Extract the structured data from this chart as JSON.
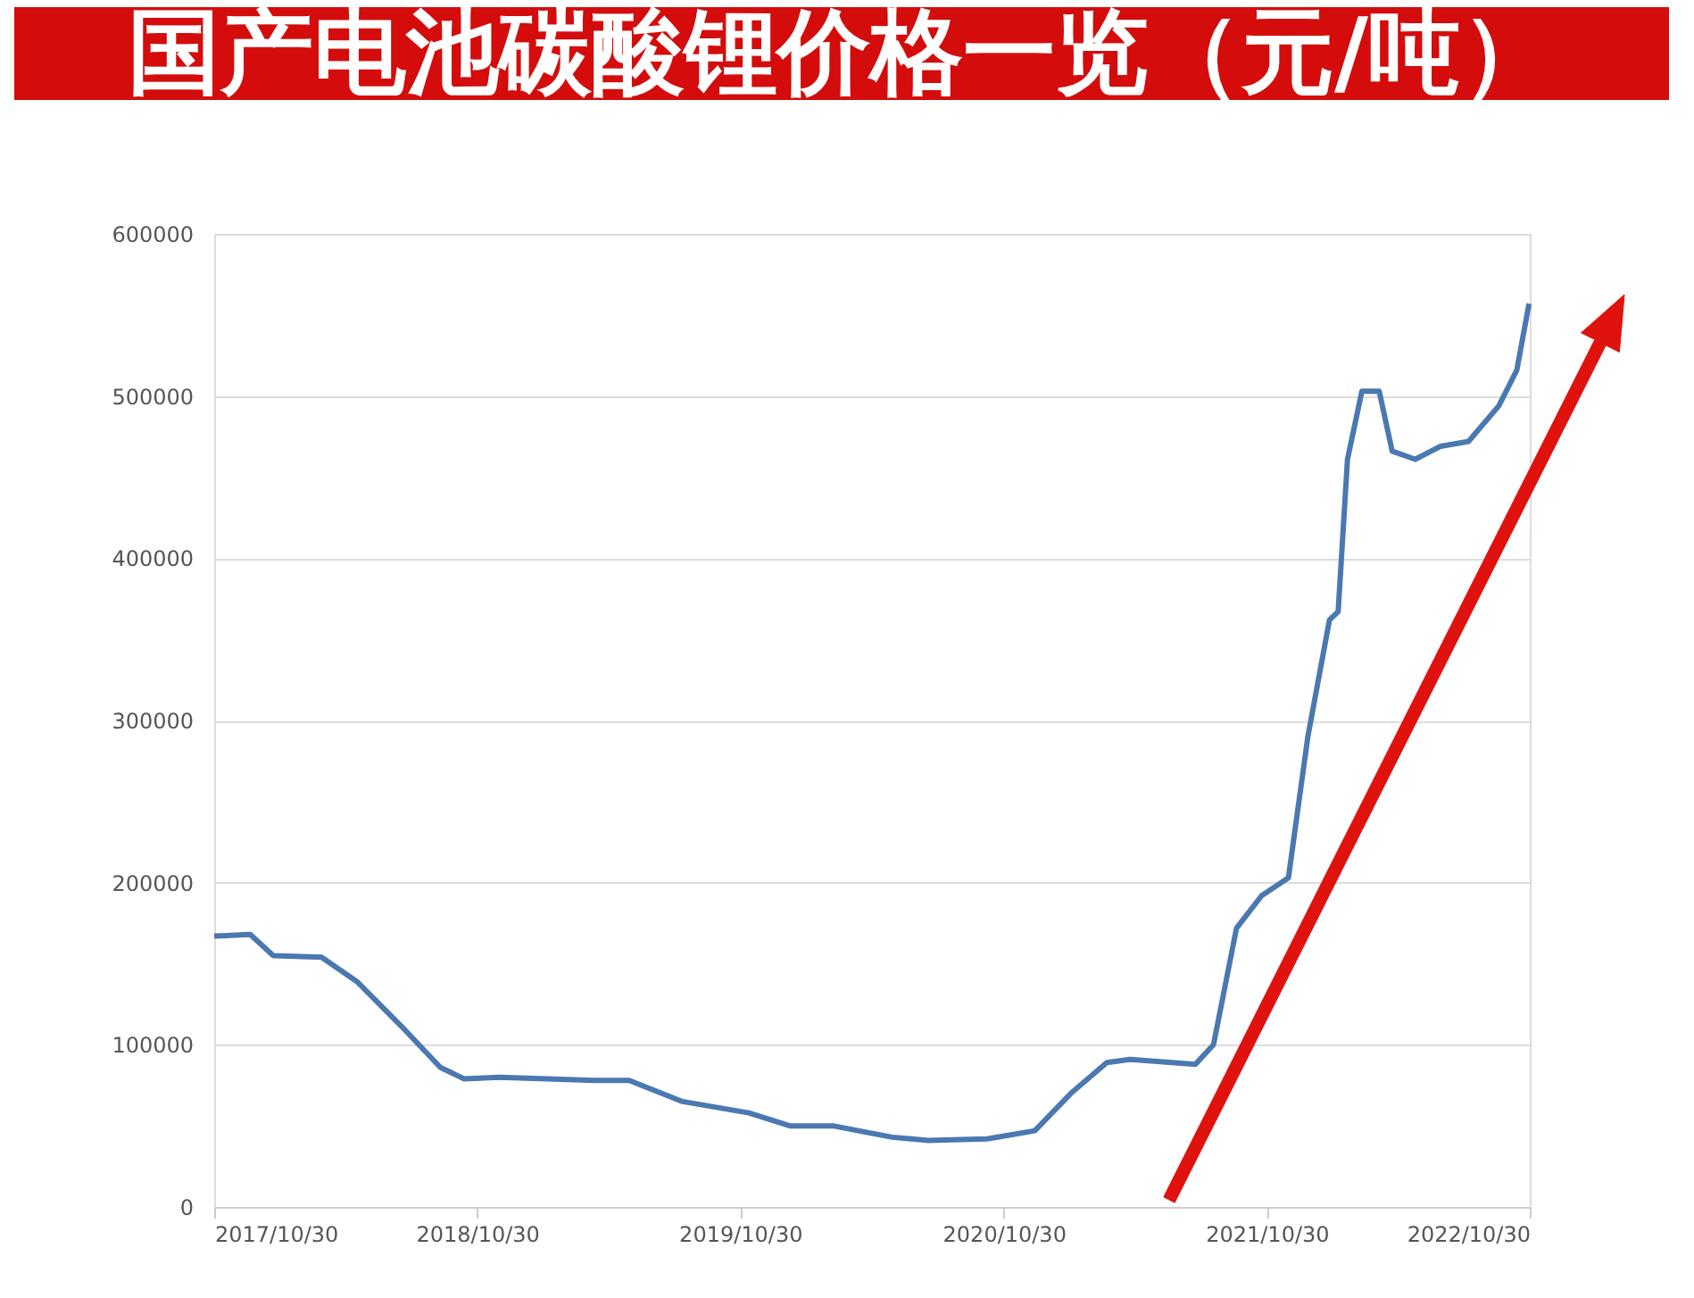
{
  "chart_data": {
    "type": "line",
    "title": "国产电池碳酸锂价格一览（元/吨）",
    "x": [
      "2017-10-30",
      "2017-12-19",
      "2018-01-20",
      "2018-03-28",
      "2018-05-16",
      "2018-07-22",
      "2018-09-09",
      "2018-10-12",
      "2018-11-30",
      "2019-04-10",
      "2019-05-29",
      "2019-08-11",
      "2019-11-11",
      "2020-01-07",
      "2020-03-07",
      "2020-05-28",
      "2020-07-17",
      "2020-10-07",
      "2020-12-12",
      "2021-01-31",
      "2021-03-22",
      "2021-04-23",
      "2021-07-23",
      "2021-08-17",
      "2021-09-18",
      "2021-10-23",
      "2021-11-29",
      "2021-12-26",
      "2022-01-25",
      "2022-02-06",
      "2022-02-19",
      "2022-03-11",
      "2022-04-04",
      "2022-04-22",
      "2022-05-24",
      "2022-06-28",
      "2022-08-06",
      "2022-09-17",
      "2022-10-12",
      "2022-10-29"
    ],
    "series": [
      {
        "color": "#4a78b0",
        "values": [
          167000,
          168000,
          155000,
          154000,
          139000,
          109000,
          86000,
          79000,
          80000,
          78000,
          78000,
          65000,
          58000,
          50000,
          50000,
          43000,
          41000,
          42000,
          47000,
          70000,
          89000,
          91000,
          88000,
          100000,
          172000,
          192000,
          203000,
          290000,
          362000,
          367000,
          461000,
          503000,
          503000,
          466000,
          461000,
          469000,
          472000,
          494000,
          516000,
          557000
        ]
      }
    ],
    "xlim": [
      "2017-10-30",
      "2022-10-30"
    ],
    "xticks": [
      {
        "value": "2017-10-30",
        "label": "2017/10/30"
      },
      {
        "value": "2018-10-30",
        "label": "2018/10/30"
      },
      {
        "value": "2019-10-30",
        "label": "2019/10/30"
      },
      {
        "value": "2020-10-30",
        "label": "2020/10/30"
      },
      {
        "value": "2021-10-30",
        "label": "2021/10/30"
      },
      {
        "value": "2022-10-30",
        "label": "2022/10/30"
      }
    ],
    "ylim": [
      0,
      600000
    ],
    "yticks": [
      0,
      100000,
      200000,
      300000,
      400000,
      500000,
      600000
    ],
    "grid": "y",
    "marker": "none",
    "line_style": "solid"
  }
}
